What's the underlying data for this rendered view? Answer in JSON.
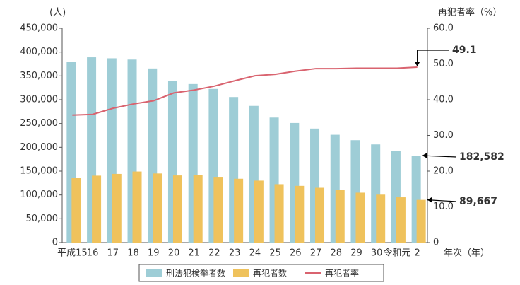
{
  "chart_data": {
    "type": "bar-line",
    "y_label": "(人)",
    "y2_label": "再犯者率（%）",
    "x_label": "年次（年）",
    "categories": [
      "平成15",
      "16",
      "17",
      "18",
      "19",
      "20",
      "21",
      "22",
      "23",
      "24",
      "25",
      "26",
      "27",
      "28",
      "29",
      "30",
      "令和元",
      "2"
    ],
    "series": [
      {
        "name": "刑法犯検挙者数",
        "color": "#9ecdd6",
        "type": "bar",
        "values": [
          379602,
          389027,
          386955,
          384250,
          365577,
          339752,
          332888,
          322620,
          305631,
          287021,
          262486,
          251115,
          239355,
          226376,
          215003,
          206094,
          192607,
          182582
        ]
      },
      {
        "name": "再犯者数",
        "color": "#efc25c",
        "type": "bar",
        "values": [
          135295,
          140496,
          144167,
          149164,
          145052,
          140939,
          141456,
          138039,
          134018,
          130077,
          122638,
          119060,
          115062,
          111154,
          104774,
          100601,
          94969,
          89667
        ]
      },
      {
        "name": "再犯者率",
        "color": "#d9636f",
        "type": "line",
        "axis": "y2",
        "values": [
          35.7,
          35.9,
          37.6,
          38.8,
          39.7,
          41.9,
          42.7,
          43.8,
          45.3,
          46.7,
          47.1,
          48.0,
          48.7,
          48.7,
          48.8,
          48.8,
          48.8,
          49.1
        ]
      }
    ],
    "annotations": [
      {
        "text": "49.1",
        "series": 2,
        "color": "#d9636f"
      },
      {
        "text": "182,582",
        "series": 0,
        "color": "#7fc3d1"
      },
      {
        "text": "89,667",
        "series": 1,
        "color": "#e8b53d"
      }
    ],
    "ylim": [
      0,
      450000
    ],
    "yticks": [
      0,
      {
        "value": 50000,
        "label": "50,000"
      },
      {
        "value": 100000,
        "label": "100,000"
      },
      {
        "value": 150000,
        "label": "150,000"
      },
      {
        "value": 200000,
        "label": "200,000"
      },
      {
        "value": 250000,
        "label": "250,000"
      },
      {
        "value": 300000,
        "label": "300,000"
      },
      {
        "value": 350000,
        "label": "350,000"
      },
      {
        "value": 400000,
        "label": "400,000"
      },
      {
        "value": 450000,
        "label": "450,000"
      }
    ],
    "y2lim": [
      0,
      60
    ],
    "y2ticks": [
      0,
      {
        "value": 10,
        "label": "10.0"
      },
      {
        "value": 20,
        "label": "20.0"
      },
      {
        "value": 30,
        "label": "30.0"
      },
      {
        "value": 40,
        "label": "40.0"
      },
      {
        "value": 50,
        "label": "50.0"
      },
      {
        "value": 60,
        "label": "60.0"
      }
    ],
    "grid": false,
    "legend": "bottom"
  }
}
